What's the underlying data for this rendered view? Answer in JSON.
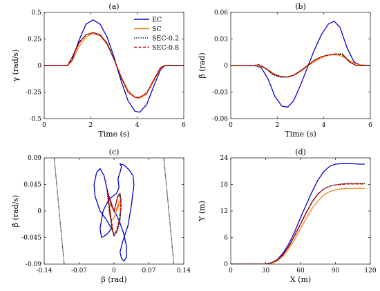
{
  "chart_data": [
    {
      "panel_title": "(a)",
      "type": "line",
      "xlabel": "Time (s)",
      "ylabel": "γ (rad/s)",
      "xlim": [
        0,
        6
      ],
      "ylim": [
        -0.5,
        0.5
      ],
      "xticks": [
        "0",
        "2",
        "4",
        "6"
      ],
      "yticks": [
        "0.5",
        "0.25",
        "0",
        "-0.25",
        "-0.5"
      ],
      "legend": "top-right",
      "series": [
        {
          "name": "EC",
          "color": "#0000cc",
          "dash": "solid",
          "x": [
            0,
            1.0,
            1.2,
            1.5,
            1.8,
            2.1,
            2.4,
            2.7,
            3.0,
            3.3,
            3.6,
            3.9,
            4.1,
            4.4,
            4.7,
            5.0,
            5.2,
            5.5,
            6.0
          ],
          "y": [
            0,
            0,
            0.05,
            0.24,
            0.39,
            0.43,
            0.39,
            0.27,
            0.08,
            -0.14,
            -0.33,
            -0.43,
            -0.44,
            -0.37,
            -0.2,
            -0.04,
            0,
            0,
            0
          ]
        },
        {
          "name": "SC",
          "color": "#f07f1a",
          "dash": "solid",
          "x": [
            0,
            1.0,
            1.2,
            1.5,
            1.8,
            2.1,
            2.4,
            2.7,
            3.0,
            3.3,
            3.6,
            3.9,
            4.1,
            4.4,
            4.7,
            5.0,
            5.2,
            5.5,
            6.0
          ],
          "y": [
            0,
            0,
            0.04,
            0.18,
            0.27,
            0.3,
            0.28,
            0.2,
            0.06,
            -0.1,
            -0.23,
            -0.3,
            -0.31,
            -0.27,
            -0.15,
            -0.03,
            0,
            0,
            0
          ]
        },
        {
          "name": "SEC-0.2",
          "color": "#000000",
          "dash": "dot",
          "x": [
            0,
            1.0,
            1.2,
            1.5,
            1.8,
            2.1,
            2.4,
            2.7,
            3.0,
            3.3,
            3.6,
            3.9,
            4.1,
            4.4,
            4.7,
            5.0,
            5.2,
            5.5,
            6.0
          ],
          "y": [
            0,
            0,
            0.08,
            0.22,
            0.29,
            0.31,
            0.29,
            0.21,
            0.06,
            -0.11,
            -0.25,
            -0.3,
            -0.3,
            -0.26,
            -0.14,
            -0.02,
            0,
            0,
            0
          ]
        },
        {
          "name": "SEC-0.8",
          "color": "#d40000",
          "dash": "dash",
          "x": [
            0,
            1.0,
            1.2,
            1.5,
            1.8,
            2.1,
            2.4,
            2.7,
            3.0,
            3.3,
            3.6,
            3.9,
            4.1,
            4.4,
            4.7,
            5.0,
            5.2,
            5.5,
            6.0
          ],
          "y": [
            0,
            0,
            0.07,
            0.21,
            0.29,
            0.31,
            0.29,
            0.21,
            0.06,
            -0.11,
            -0.25,
            -0.3,
            -0.3,
            -0.26,
            -0.14,
            -0.02,
            0,
            0,
            0
          ]
        }
      ]
    },
    {
      "panel_title": "(b)",
      "type": "line",
      "xlabel": "Time (s)",
      "ylabel": "β (rad)",
      "xlim": [
        0,
        6
      ],
      "ylim": [
        -0.06,
        0.06
      ],
      "xticks": [
        "0",
        "2",
        "4",
        "6"
      ],
      "yticks": [
        "0.06",
        "0.03",
        "0",
        "-0.03",
        "-0.06"
      ],
      "series": [
        {
          "name": "EC",
          "color": "#0000cc",
          "dash": "solid",
          "x": [
            0,
            1.0,
            1.3,
            1.6,
            1.9,
            2.2,
            2.45,
            2.7,
            3.0,
            3.3,
            3.6,
            3.9,
            4.2,
            4.45,
            4.7,
            5.0,
            5.3,
            5.6,
            6.0
          ],
          "y": [
            0,
            0,
            -0.002,
            -0.015,
            -0.035,
            -0.046,
            -0.047,
            -0.04,
            -0.022,
            -0.002,
            0.018,
            0.035,
            0.047,
            0.05,
            0.043,
            0.02,
            0.004,
            0,
            0
          ]
        },
        {
          "name": "SC",
          "color": "#f07f1a",
          "dash": "solid",
          "x": [
            0,
            1.0,
            1.3,
            1.6,
            1.9,
            2.2,
            2.5,
            2.8,
            3.1,
            3.4,
            3.7,
            4.0,
            4.3,
            4.6,
            4.9,
            5.2,
            5.5,
            6.0
          ],
          "y": [
            0,
            0,
            -0.001,
            -0.005,
            -0.01,
            -0.013,
            -0.013,
            -0.01,
            -0.005,
            0.001,
            0.006,
            0.01,
            0.012,
            0.012,
            0.009,
            0.004,
            0.001,
            0
          ]
        },
        {
          "name": "SEC-0.2",
          "color": "#000000",
          "dash": "dot",
          "x": [
            0,
            1.0,
            1.2,
            1.5,
            1.8,
            2.1,
            2.4,
            2.7,
            3.0,
            3.3,
            3.6,
            3.9,
            4.2,
            4.5,
            4.8,
            5.1,
            5.4,
            6.0
          ],
          "y": [
            0,
            0,
            0.001,
            -0.003,
            -0.01,
            -0.013,
            -0.013,
            -0.011,
            -0.006,
            0.0,
            0.006,
            0.01,
            0.012,
            0.013,
            0.013,
            0.004,
            0,
            0
          ]
        },
        {
          "name": "SEC-0.8",
          "color": "#d40000",
          "dash": "dash",
          "x": [
            0,
            1.0,
            1.2,
            1.5,
            1.8,
            2.1,
            2.4,
            2.7,
            3.0,
            3.3,
            3.6,
            3.9,
            4.2,
            4.5,
            4.8,
            5.1,
            5.4,
            6.0
          ],
          "y": [
            0,
            0,
            0.001,
            -0.003,
            -0.009,
            -0.012,
            -0.013,
            -0.011,
            -0.006,
            0.0,
            0.006,
            0.01,
            0.012,
            0.013,
            0.012,
            0.004,
            0,
            0
          ]
        }
      ]
    },
    {
      "panel_title": "(c)",
      "type": "line",
      "xlabel": "β (rad)",
      "ylabel": "β̇ (rad/s)",
      "xlim": [
        -0.14,
        0.14
      ],
      "ylim": [
        -0.09,
        0.09
      ],
      "xticks": [
        "-0.14",
        "-0.07",
        "0",
        "0.07",
        "0.14"
      ],
      "yticks": [
        "0.09",
        "0.045",
        "0",
        "-0.045",
        "-0.09"
      ],
      "series": [
        {
          "name": "EC",
          "color": "#0000cc",
          "dash": "solid",
          "x": [
            0,
            -0.012,
            -0.02,
            -0.028,
            -0.035,
            -0.04,
            -0.038,
            -0.028,
            -0.015,
            -0.005,
            -0.015,
            -0.025,
            -0.028,
            -0.022,
            -0.01,
            0.005,
            0.01,
            0.008,
            0.012,
            0.015,
            0.012,
            0.02,
            0.03,
            0.038,
            0.04,
            0.035,
            0.028,
            0.018,
            0.012,
            0.015,
            0.02,
            0.025,
            0.025,
            0.02,
            0.012,
            0.004,
            0
          ],
          "y": [
            0,
            0.03,
            0.06,
            0.072,
            0.065,
            0.045,
            0.025,
            0.0,
            -0.015,
            -0.03,
            -0.04,
            -0.045,
            -0.03,
            0.0,
            0.02,
            0.03,
            0.04,
            0.055,
            0.065,
            0.075,
            0.08,
            0.078,
            0.07,
            0.06,
            0.045,
            0.01,
            -0.025,
            -0.05,
            -0.07,
            -0.08,
            -0.085,
            -0.078,
            -0.06,
            -0.04,
            -0.02,
            -0.005,
            0
          ]
        },
        {
          "name": "SC",
          "color": "#f07f1a",
          "dash": "solid",
          "x": [
            0,
            -0.003,
            -0.008,
            -0.01,
            -0.008,
            -0.004,
            0,
            0.004,
            0.01,
            0.01,
            0.008,
            0.004,
            0
          ],
          "y": [
            0,
            0.005,
            0.012,
            0.002,
            -0.01,
            -0.015,
            -0.012,
            -0.002,
            0.01,
            0.016,
            0.01,
            0.002,
            0
          ]
        },
        {
          "name": "SEC-0.2",
          "color": "#000000",
          "dash": "dot",
          "x": [
            0,
            -0.006,
            -0.012,
            -0.014,
            -0.012,
            -0.008,
            -0.004,
            0,
            0.006,
            0.012,
            0.014,
            0.014,
            0.012,
            0.008,
            0.004,
            0
          ],
          "y": [
            0,
            0.012,
            0.028,
            0.036,
            0.02,
            -0.005,
            -0.03,
            -0.042,
            -0.035,
            -0.015,
            0.005,
            0.02,
            0.03,
            0.026,
            0.012,
            0
          ]
        },
        {
          "name": "SEC-0.8",
          "color": "#d40000",
          "dash": "dash",
          "x": [
            0,
            -0.005,
            -0.011,
            -0.013,
            -0.011,
            -0.007,
            -0.003,
            0,
            0.005,
            0.011,
            0.013,
            0.013,
            0.011,
            0.007,
            0.003,
            0
          ],
          "y": [
            0,
            0.012,
            0.026,
            0.034,
            0.02,
            -0.005,
            -0.028,
            -0.04,
            -0.033,
            -0.014,
            0.004,
            0.018,
            0.028,
            0.024,
            0.01,
            0
          ]
        },
        {
          "name": "",
          "color": "#666666",
          "dash": "dashdot",
          "x": [
            -0.12,
            -0.1
          ],
          "y": [
            0.09,
            -0.09
          ]
        },
        {
          "name": "",
          "color": "#666666",
          "dash": "dashdot",
          "x": [
            0.1,
            0.12
          ],
          "y": [
            0.09,
            -0.09
          ]
        }
      ]
    },
    {
      "panel_title": "(d)",
      "type": "line",
      "xlabel": "X (m)",
      "ylabel": "Y (m)",
      "xlim": [
        0,
        120
      ],
      "ylim": [
        0,
        24
      ],
      "xticks": [
        "0",
        "30",
        "60",
        "90",
        "120"
      ],
      "yticks": [
        "24",
        "18",
        "12",
        "6",
        "0"
      ],
      "series": [
        {
          "name": "EC",
          "color": "#0000cc",
          "dash": "solid",
          "x": [
            0,
            30,
            35,
            40,
            45,
            50,
            55,
            60,
            65,
            70,
            75,
            80,
            85,
            90,
            95,
            100,
            105,
            110,
            115
          ],
          "y": [
            0,
            0,
            0.3,
            1.0,
            2.5,
            4.6,
            7.3,
            10.5,
            13.5,
            16.4,
            19.0,
            20.9,
            22.1,
            22.6,
            22.7,
            22.7,
            22.7,
            22.6,
            22.6
          ]
        },
        {
          "name": "SC",
          "color": "#f07f1a",
          "dash": "solid",
          "x": [
            0,
            30,
            35,
            40,
            45,
            50,
            55,
            60,
            65,
            70,
            75,
            80,
            85,
            90,
            95,
            100,
            105,
            110,
            115
          ],
          "y": [
            0,
            0,
            0.2,
            0.7,
            1.8,
            3.5,
            5.6,
            8.0,
            10.4,
            12.6,
            14.3,
            15.6,
            16.4,
            16.8,
            17.0,
            17.1,
            17.1,
            17.1,
            17.1
          ]
        },
        {
          "name": "SEC-0.2",
          "color": "#000000",
          "dash": "dot",
          "x": [
            0,
            30,
            35,
            40,
            45,
            50,
            55,
            60,
            65,
            70,
            75,
            80,
            85,
            90,
            95,
            100,
            105,
            110,
            115
          ],
          "y": [
            0,
            0,
            0.3,
            0.9,
            2.2,
            4.1,
            6.5,
            9.1,
            11.7,
            14.1,
            15.9,
            17.0,
            17.6,
            17.9,
            18.1,
            18.2,
            18.2,
            18.2,
            18.2
          ]
        },
        {
          "name": "SEC-0.8",
          "color": "#d40000",
          "dash": "dash",
          "x": [
            0,
            30,
            35,
            40,
            45,
            50,
            55,
            60,
            65,
            70,
            75,
            80,
            85,
            90,
            95,
            100,
            105,
            110,
            115
          ],
          "y": [
            0,
            0,
            0.3,
            0.9,
            2.1,
            4.0,
            6.4,
            9.0,
            11.6,
            14.0,
            15.8,
            17.0,
            17.6,
            17.9,
            18.0,
            18.1,
            18.1,
            18.1,
            18.1
          ]
        }
      ]
    }
  ]
}
